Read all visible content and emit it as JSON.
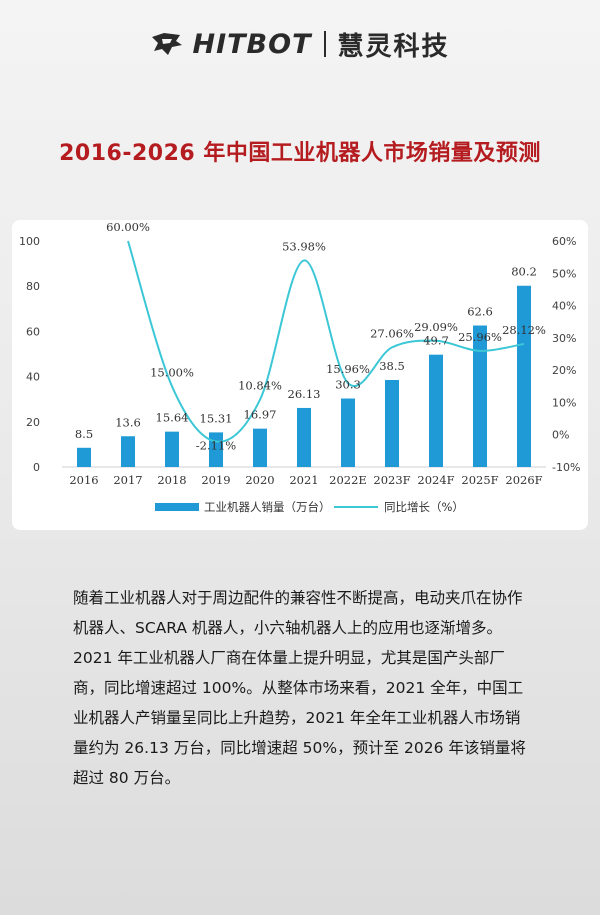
{
  "logo": {
    "brand_en": "HITBOT",
    "brand_cn": "慧灵科技"
  },
  "title": "2016-2026 年中国工业机器人市场销量及预测",
  "chart_data": {
    "type": "bar",
    "categories": [
      "2016",
      "2017",
      "2018",
      "2019",
      "2020",
      "2021",
      "2022E",
      "2023F",
      "2024F",
      "2025F",
      "2026F"
    ],
    "series": [
      {
        "name": "工业机器人销量（万台）",
        "type": "bar",
        "axis": "left",
        "color": "#1f9ad6",
        "values": [
          8.5,
          13.6,
          15.64,
          15.31,
          16.97,
          26.13,
          30.3,
          38.5,
          49.7,
          62.6,
          80.2
        ],
        "labels": [
          "8.5",
          "13.6",
          "15.64",
          "15.31",
          "16.97",
          "26.13",
          "30.3",
          "38.5",
          "49.7",
          "62.6",
          "80.2"
        ]
      },
      {
        "name": "同比增长（%）",
        "type": "line",
        "axis": "right",
        "color": "#3cc7d6",
        "smooth": true,
        "values": [
          null,
          60.0,
          15.0,
          -2.11,
          10.84,
          53.98,
          15.96,
          27.06,
          29.09,
          25.96,
          28.12
        ],
        "labels": [
          "",
          "60.00%",
          "15.00%",
          "-2.11%",
          "10.84%",
          "53.98%",
          "15.96%",
          "27.06%",
          "29.09%",
          "25.96%",
          "28.12%"
        ]
      }
    ],
    "ylim_left": [
      0,
      100
    ],
    "yticks_left": [
      "0",
      "20",
      "40",
      "60",
      "80",
      "100"
    ],
    "ylim_right": [
      -10,
      60
    ],
    "yticks_right": [
      "-10%",
      "0%",
      "10%",
      "20%",
      "30%",
      "40%",
      "50%",
      "60%"
    ],
    "legend_position": "bottom",
    "grid": false
  },
  "paragraphs": [
    "随着工业机器人对于周边配件的兼容性不断提高，电动夹爪在协作机器人、SCARA 机器人，小六轴机器人上的应用也逐渐增多。",
    "2021 年工业机器人厂商在体量上提升明显，尤其是国产头部厂商，同比增速超过 100%。从整体市场来看，2021 全年，中国工业机器人产销量呈同比上升趋势，2021 年全年工业机器人市场销量约为 26.13 万台，同比增速超 50%，预计至 2026 年该销量将超过 80 万台。"
  ]
}
